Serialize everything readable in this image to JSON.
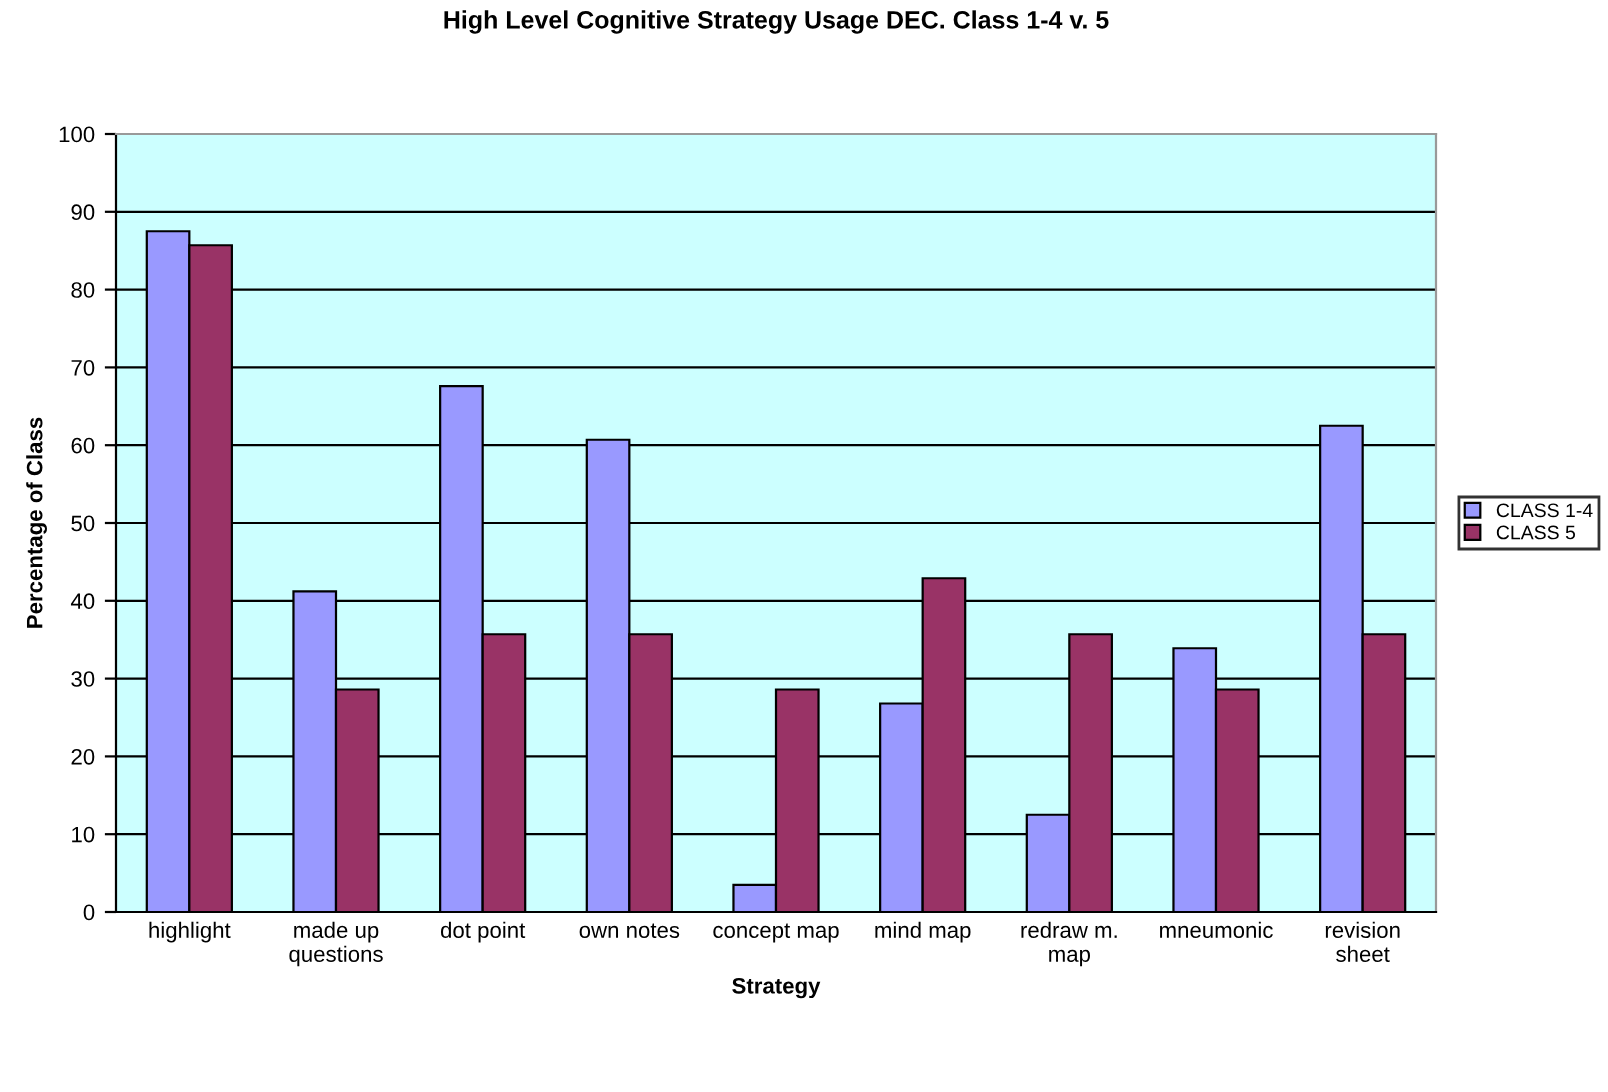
{
  "chart_data": {
    "type": "bar",
    "title": "High Level Cognitive Strategy Usage DEC. Class 1-4 v. 5",
    "xlabel": "Strategy",
    "ylabel": "Percentage of Class",
    "categories": [
      "highlight",
      "made up\nquestions",
      "dot point",
      "own notes",
      "concept map",
      "mind map",
      "redraw m.\nmap",
      "mneumonic",
      "revision\nsheet"
    ],
    "series": [
      {
        "name": "CLASS 1-4",
        "color": "#9999ff",
        "values": [
          87.5,
          41.2,
          67.6,
          60.7,
          3.5,
          26.8,
          12.5,
          33.9,
          62.5
        ]
      },
      {
        "name": "CLASS 5",
        "color": "#993366",
        "values": [
          85.7,
          28.6,
          35.7,
          35.7,
          28.6,
          42.9,
          35.7,
          28.6,
          35.7
        ]
      }
    ],
    "ylim": [
      0,
      100
    ],
    "yticks": [
      0,
      10,
      20,
      30,
      40,
      50,
      60,
      70,
      80,
      90,
      100
    ],
    "grid": "y",
    "legend": "right"
  }
}
